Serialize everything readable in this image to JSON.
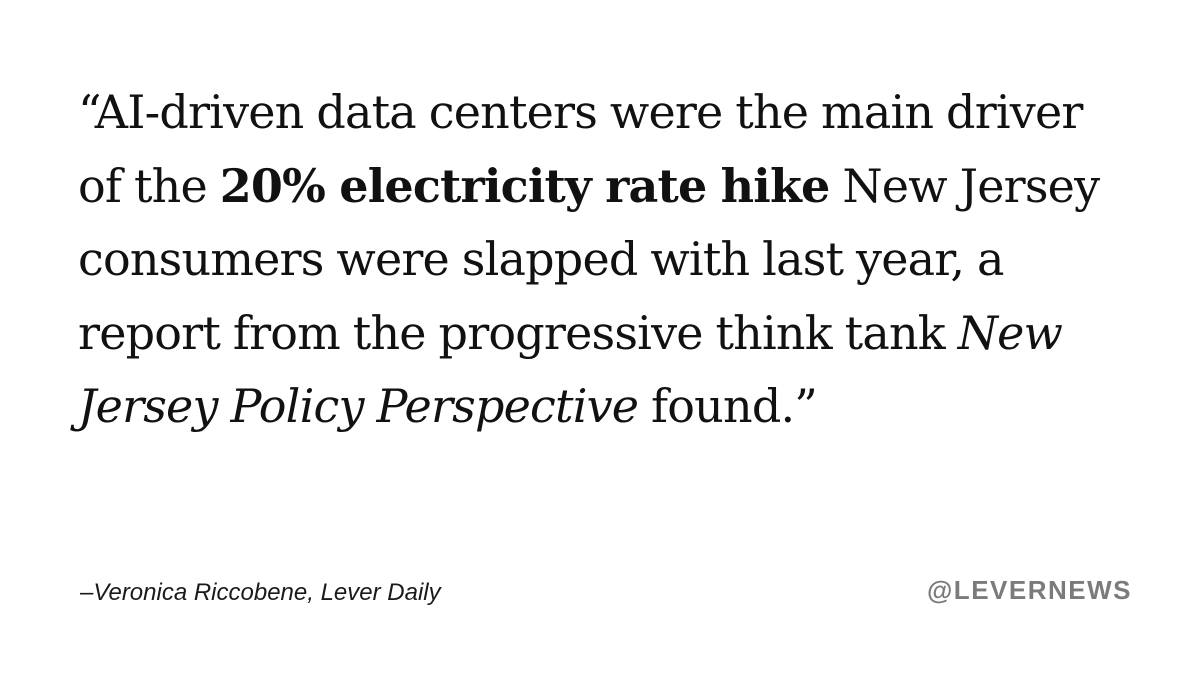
{
  "quote": {
    "text_1": "“AI-driven data centers were the main driver of the ",
    "text_bold": "20% electricity rate hike",
    "text_2": " New Jersey consumers were slapped with last year, a report from the progressive think tank ",
    "text_italic": "New Jersey Policy Perspective",
    "text_3": " found.”"
  },
  "attribution": "–Veronica Riccobene, Lever Daily",
  "handle": "@LEVERNEWS",
  "colors": {
    "background": "#ffffff",
    "text": "#111111",
    "handle": "#7b7b7b"
  }
}
